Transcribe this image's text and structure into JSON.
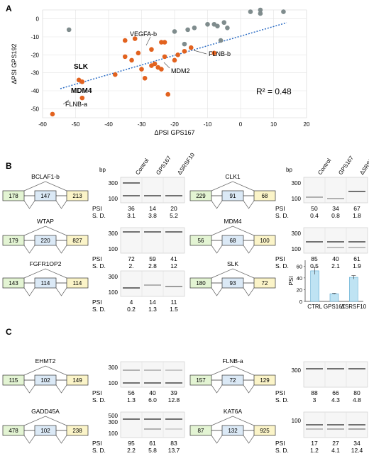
{
  "panelA": {
    "label": "A",
    "xlabel": "ΔPSI GPS167",
    "ylabel": "ΔPSI GPS192",
    "xticks": [
      "-60",
      "-50",
      "-40",
      "-30",
      "-20",
      "-10",
      "0",
      "10",
      "20"
    ],
    "yticks": [
      "0",
      "-10",
      "-20",
      "-30",
      "-40",
      "-50"
    ],
    "r2": "R² = 0.48",
    "annotations": {
      "vegfa": "VEGFA-b",
      "flnbb": "FLNB-b",
      "slk": "SLK",
      "mdm2": "MDM2",
      "mdm4": "MDM4",
      "flnba": "FLNB-a"
    }
  },
  "panelB": {
    "label": "B",
    "bp": "bp",
    "conditions": [
      "Control",
      "GPS167",
      "ΔSRSF10"
    ],
    "psi_label": "PSI",
    "sd_label": "S. D.",
    "genes": [
      {
        "name": "BCLAF1-b",
        "exons": [
          "178",
          "147",
          "213"
        ],
        "ticks": [
          "300",
          "100"
        ],
        "psi": [
          "36",
          "14",
          "20"
        ],
        "sd": [
          "3.1",
          "3.8",
          "5.2"
        ]
      },
      {
        "name": "WTAP",
        "exons": [
          "179",
          "220",
          "827"
        ],
        "ticks": [
          "300",
          "100"
        ],
        "psi": [
          "72",
          "59",
          "41"
        ],
        "sd": [
          "2.",
          "2.8",
          "12"
        ]
      },
      {
        "name": "FGFR1OP2",
        "exons": [
          "143",
          "114",
          "114"
        ],
        "ticks": [
          "300",
          "100"
        ],
        "psi": [
          "4",
          "14",
          "11"
        ],
        "sd": [
          "0.2",
          "1.3",
          "1.5"
        ]
      },
      {
        "name": "CLK1",
        "exons": [
          "229",
          "91",
          "68"
        ],
        "ticks": [
          "300",
          "100"
        ],
        "psi": [
          "50",
          "34",
          "67"
        ],
        "sd": [
          "0.4",
          "0.8",
          "1.8"
        ]
      },
      {
        "name": "MDM4",
        "exons": [
          "56",
          "68",
          "100"
        ],
        "ticks": [
          "300",
          "100"
        ],
        "psi": [
          "85",
          "40",
          "61"
        ],
        "sd": [
          "0.5",
          "2.1",
          "1.9"
        ]
      },
      {
        "name": "SLK",
        "exons": [
          "180",
          "93",
          "72"
        ]
      }
    ],
    "slk_bar": {
      "ylabel": "PSI",
      "yticks": [
        "0",
        "20",
        "40",
        "60"
      ],
      "categories": [
        "CTRL",
        "GPS167",
        "ΔSRSF10"
      ]
    }
  },
  "panelC": {
    "label": "C",
    "genes": [
      {
        "name": "EHMT2",
        "exons": [
          "115",
          "102",
          "149"
        ],
        "ticks": [
          "300",
          "100"
        ],
        "psi": [
          "56",
          "40",
          "39"
        ],
        "sd": [
          "1.3",
          "6.0",
          "12.8"
        ]
      },
      {
        "name": "GADD45A",
        "exons": [
          "478",
          "102",
          "238"
        ],
        "ticks": [
          "500",
          "300",
          "100"
        ],
        "psi": [
          "95",
          "61",
          "83"
        ],
        "sd": [
          "2.2",
          "5.8",
          "13.7"
        ]
      },
      {
        "name": "FLNB-a",
        "exons": [
          "157",
          "72",
          "129"
        ],
        "ticks": [
          "300"
        ],
        "psi": [
          "88",
          "66",
          "80"
        ],
        "sd": [
          "3",
          "4.3",
          "4.8"
        ]
      },
      {
        "name": "KAT6A",
        "exons": [
          "87",
          "132",
          "925"
        ],
        "ticks": [
          "100"
        ],
        "psi": [
          "17",
          "27",
          "34"
        ],
        "sd": [
          "1.2",
          "4.1",
          "12.4"
        ]
      }
    ]
  },
  "chart_data": [
    {
      "type": "scatter",
      "xlabel": "ΔPSI GPS167",
      "ylabel": "ΔPSI GPS192",
      "xlim": [
        -60,
        20
      ],
      "ylim": [
        -55,
        5
      ],
      "grid": true,
      "annotation": "R² = 0.48",
      "series": [
        {
          "color": "#7f8c8d",
          "points": [
            [
              -52,
              -6
            ],
            [
              -20,
              -7
            ],
            [
              -16,
              -6
            ],
            [
              -14,
              -5
            ],
            [
              -10,
              -3
            ],
            [
              -8,
              -3
            ],
            [
              -7,
              -4
            ],
            [
              -5,
              -2
            ],
            [
              -4,
              -5
            ],
            [
              3,
              4
            ],
            [
              6,
              3
            ],
            [
              6,
              5
            ],
            [
              13,
              4
            ],
            [
              -6,
              -12
            ],
            [
              -17,
              -14
            ]
          ]
        },
        {
          "color": "#e2621f",
          "points": [
            [
              -57,
              -53
            ],
            [
              -49,
              -34
            ],
            [
              -48,
              -35
            ],
            [
              -48,
              -44
            ],
            [
              -38,
              -31
            ],
            [
              -35,
              -12
            ],
            [
              -35,
              -21
            ],
            [
              -33,
              -23
            ],
            [
              -32,
              -11
            ],
            [
              -31,
              -19
            ],
            [
              -30,
              -28
            ],
            [
              -29,
              -33
            ],
            [
              -27,
              -26
            ],
            [
              -27,
              -17
            ],
            [
              -26,
              -25
            ],
            [
              -25,
              -27
            ],
            [
              -24,
              -13
            ],
            [
              -24,
              -28
            ],
            [
              -23,
              -13
            ],
            [
              -23,
              -21
            ],
            [
              -22,
              -42
            ],
            [
              -20,
              -23
            ],
            [
              -19,
              -20
            ],
            [
              -17,
              -18
            ],
            [
              -15,
              -16
            ],
            [
              -8,
              -19
            ]
          ]
        }
      ]
    },
    {
      "type": "bar",
      "categories": [
        "CTRL",
        "GPS167",
        "ΔSRSF10"
      ],
      "values": [
        52,
        13,
        41
      ],
      "errors": [
        6,
        1,
        3
      ],
      "ylabel": "PSI",
      "ylim": [
        0,
        70
      ],
      "color": "#bfe3f3"
    }
  ]
}
